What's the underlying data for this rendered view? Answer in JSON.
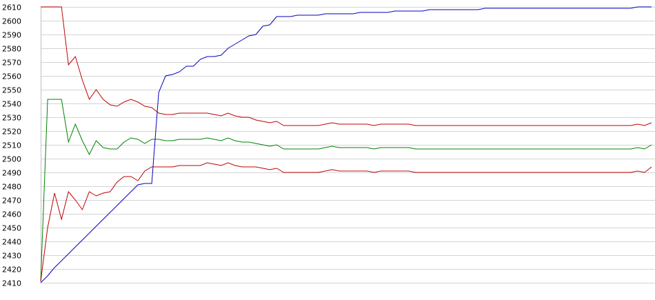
{
  "chart_data": {
    "type": "line",
    "title": "",
    "xlabel": "",
    "ylabel": "",
    "grid": true,
    "legend": "none",
    "ylim": [
      2410,
      2610
    ],
    "yticks": [
      2410,
      2420,
      2430,
      2440,
      2450,
      2460,
      2470,
      2480,
      2490,
      2500,
      2510,
      2520,
      2530,
      2540,
      2550,
      2560,
      2570,
      2580,
      2590,
      2600,
      2610
    ],
    "xlim": [
      0,
      88
    ],
    "x": [
      0,
      1,
      2,
      3,
      4,
      5,
      6,
      7,
      8,
      9,
      10,
      11,
      12,
      13,
      14,
      15,
      16,
      17,
      18,
      19,
      20,
      21,
      22,
      23,
      24,
      25,
      26,
      27,
      28,
      29,
      30,
      31,
      32,
      33,
      34,
      35,
      36,
      37,
      38,
      39,
      40,
      41,
      42,
      43,
      44,
      45,
      46,
      47,
      48,
      49,
      50,
      51,
      52,
      53,
      54,
      55,
      56,
      57,
      58,
      59,
      60,
      61,
      62,
      63,
      64,
      65,
      66,
      67,
      68,
      69,
      70,
      71,
      72,
      73,
      74,
      75,
      76,
      77,
      78,
      79,
      80,
      81,
      82,
      83,
      84,
      85,
      86,
      87,
      88
    ],
    "series": [
      {
        "color": "#c00000",
        "values": [
          2610,
          2610,
          2610,
          2610,
          2568,
          2574,
          2557,
          2543,
          2550,
          2543,
          2539,
          2538,
          2541,
          2543,
          2541,
          2538,
          2537,
          2533,
          2532,
          2532,
          2533,
          2533,
          2533,
          2533,
          2533,
          2532,
          2531,
          2533,
          2531,
          2530,
          2530,
          2528,
          2527,
          2526,
          2527,
          2524,
          2524,
          2524,
          2524,
          2524,
          2524,
          2525,
          2526,
          2525,
          2525,
          2525,
          2525,
          2525,
          2524,
          2525,
          2525,
          2525,
          2525,
          2525,
          2524,
          2524,
          2524,
          2524,
          2524,
          2524,
          2524,
          2524,
          2524,
          2524,
          2524,
          2524,
          2524,
          2524,
          2524,
          2524,
          2524,
          2524,
          2524,
          2524,
          2524,
          2524,
          2524,
          2524,
          2524,
          2524,
          2524,
          2524,
          2524,
          2524,
          2524,
          2524,
          2525,
          2524,
          2526
        ]
      },
      {
        "color": "#008000",
        "values": [
          2411,
          2543,
          2543,
          2543,
          2512,
          2525,
          2513,
          2503,
          2513,
          2508,
          2507,
          2507,
          2512,
          2515,
          2514,
          2511,
          2514,
          2514,
          2513,
          2513,
          2514,
          2514,
          2514,
          2514,
          2515,
          2514,
          2513,
          2515,
          2513,
          2512,
          2512,
          2511,
          2510,
          2509,
          2510,
          2507,
          2507,
          2507,
          2507,
          2507,
          2507,
          2508,
          2509,
          2508,
          2508,
          2508,
          2508,
          2508,
          2507,
          2508,
          2508,
          2508,
          2508,
          2508,
          2507,
          2507,
          2507,
          2507,
          2507,
          2507,
          2507,
          2507,
          2507,
          2507,
          2507,
          2507,
          2507,
          2507,
          2507,
          2507,
          2507,
          2507,
          2507,
          2507,
          2507,
          2507,
          2507,
          2507,
          2507,
          2507,
          2507,
          2507,
          2507,
          2507,
          2507,
          2507,
          2508,
          2507,
          2510
        ]
      },
      {
        "color": "#c00000",
        "values": [
          2411,
          2450,
          2475,
          2456,
          2476,
          2470,
          2463,
          2476,
          2473,
          2475,
          2476,
          2483,
          2487,
          2487,
          2484,
          2491,
          2494,
          2494,
          2494,
          2494,
          2495,
          2495,
          2495,
          2495,
          2497,
          2496,
          2495,
          2497,
          2495,
          2494,
          2494,
          2494,
          2493,
          2492,
          2493,
          2490,
          2490,
          2490,
          2490,
          2490,
          2490,
          2491,
          2492,
          2491,
          2491,
          2491,
          2491,
          2491,
          2490,
          2491,
          2491,
          2491,
          2491,
          2491,
          2490,
          2490,
          2490,
          2490,
          2490,
          2490,
          2490,
          2490,
          2490,
          2490,
          2490,
          2490,
          2490,
          2490,
          2490,
          2490,
          2490,
          2490,
          2490,
          2490,
          2490,
          2490,
          2490,
          2490,
          2490,
          2490,
          2490,
          2490,
          2490,
          2490,
          2490,
          2490,
          2491,
          2490,
          2494
        ]
      },
      {
        "color": "#0000c0",
        "values": [
          2410,
          2415,
          2421,
          2426,
          2431,
          2436,
          2441,
          2446,
          2451,
          2456,
          2461,
          2466,
          2471,
          2476,
          2481,
          2482,
          2482,
          2548,
          2560,
          2561,
          2563,
          2567,
          2567,
          2572,
          2574,
          2574,
          2575,
          2580,
          2583,
          2586,
          2589,
          2590,
          2596,
          2597,
          2603,
          2603,
          2603,
          2604,
          2604,
          2604,
          2604,
          2605,
          2605,
          2605,
          2605,
          2605,
          2606,
          2606,
          2606,
          2606,
          2606,
          2607,
          2607,
          2607,
          2607,
          2607,
          2608,
          2608,
          2608,
          2608,
          2608,
          2608,
          2608,
          2608,
          2609,
          2609,
          2609,
          2609,
          2609,
          2609,
          2609,
          2609,
          2609,
          2609,
          2609,
          2609,
          2609,
          2609,
          2609,
          2609,
          2609,
          2609,
          2609,
          2609,
          2609,
          2609,
          2610,
          2610,
          2610
        ]
      }
    ]
  }
}
